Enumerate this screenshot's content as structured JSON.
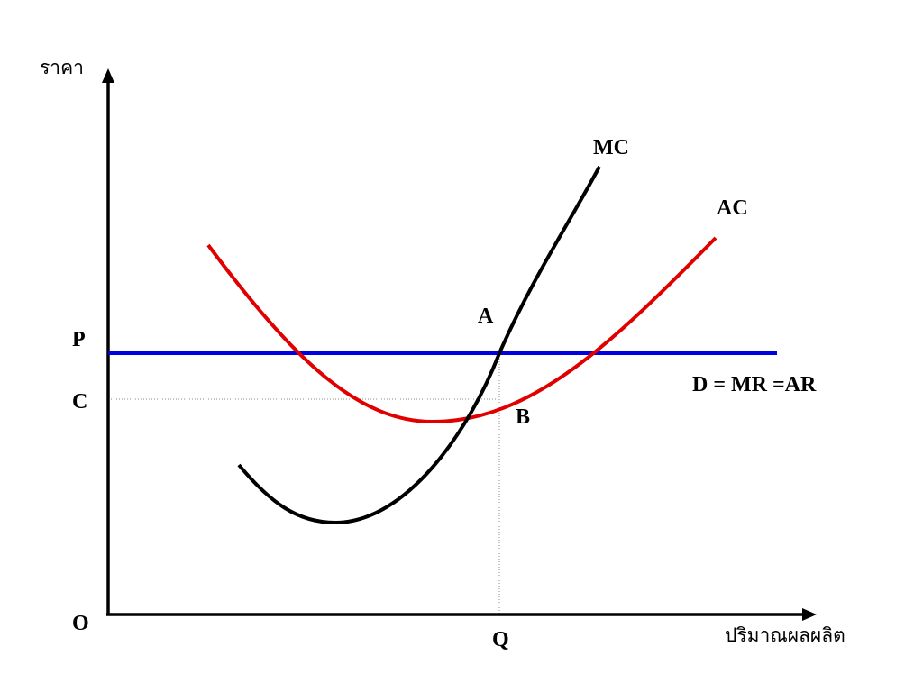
{
  "diagram": {
    "y_axis_label": "ราคา",
    "x_axis_label": "ปริมาณผลผลิต",
    "origin_label": "O",
    "price_label": "P",
    "cost_label": "C",
    "quantity_label": "Q",
    "point_a_label": "A",
    "point_b_label": "B",
    "mc_label": "MC",
    "ac_label": "AC",
    "demand_label": "D = MR =AR"
  },
  "colors": {
    "axes": "#000000",
    "mc_curve": "#000000",
    "ac_curve": "#e00000",
    "demand_line": "#0000e0",
    "guide_lines": "#888888"
  }
}
